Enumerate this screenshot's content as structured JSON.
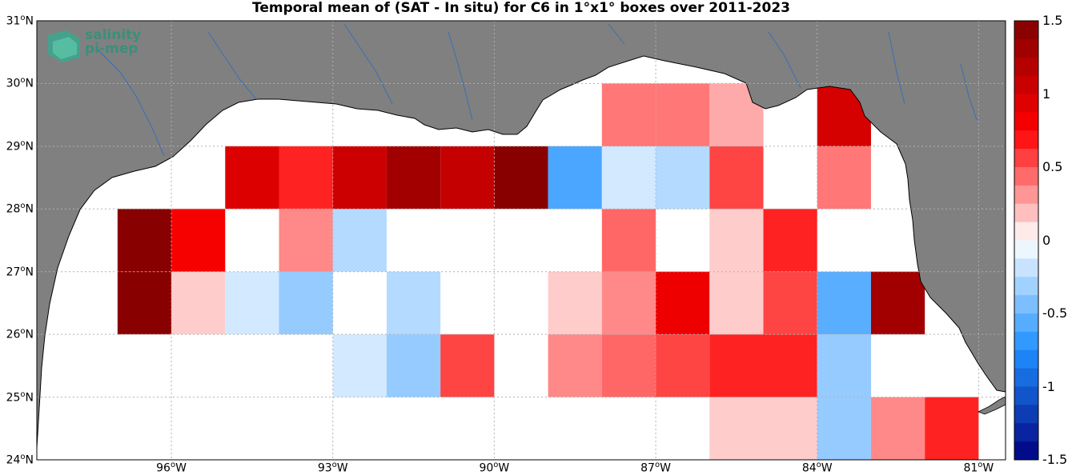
{
  "title": "Temporal mean of (SAT - In situ) for C6 in 1°x1° boxes over 2011-2023",
  "logo": {
    "line1": "salinity",
    "line2": "pi-mep"
  },
  "colors": {
    "land": "#808080",
    "ocean": "#ffffff",
    "coast": "#000000",
    "rivers": "#3a6fb0",
    "grid": "#b0b0b0"
  },
  "map_data": {
    "lon_range": [
      -98.5,
      -80.5
    ],
    "lat_range": [
      24,
      31
    ],
    "lon_ticks": [
      {
        "deg": -96,
        "label": "96",
        "unit": "W"
      },
      {
        "deg": -93,
        "label": "93",
        "unit": "W"
      },
      {
        "deg": -90,
        "label": "90",
        "unit": "W"
      },
      {
        "deg": -87,
        "label": "87",
        "unit": "W"
      },
      {
        "deg": -84,
        "label": "84",
        "unit": "W"
      },
      {
        "deg": -81,
        "label": "81",
        "unit": "W"
      }
    ],
    "lat_ticks": [
      {
        "deg": 24,
        "label": "24",
        "unit": "N"
      },
      {
        "deg": 25,
        "label": "25",
        "unit": "N"
      },
      {
        "deg": 26,
        "label": "26",
        "unit": "N"
      },
      {
        "deg": 27,
        "label": "27",
        "unit": "N"
      },
      {
        "deg": 28,
        "label": "28",
        "unit": "N"
      },
      {
        "deg": 29,
        "label": "29",
        "unit": "N"
      },
      {
        "deg": 30,
        "label": "30",
        "unit": "N"
      },
      {
        "deg": 31,
        "label": "31",
        "unit": "N"
      }
    ],
    "box_size_deg": 1,
    "cells": [
      {
        "lon": -96.5,
        "lat": 26.5,
        "v": 1.45
      },
      {
        "lon": -96.5,
        "lat": 27.5,
        "v": 1.45
      },
      {
        "lon": -95.5,
        "lat": 26.5,
        "v": 0.15
      },
      {
        "lon": -95.5,
        "lat": 27.5,
        "v": 0.8
      },
      {
        "lon": -94.5,
        "lat": 26.5,
        "v": -0.15
      },
      {
        "lon": -94.5,
        "lat": 28.5,
        "v": 0.95
      },
      {
        "lon": -93.5,
        "lat": 26.5,
        "v": -0.35
      },
      {
        "lon": -93.5,
        "lat": 27.5,
        "v": 0.35
      },
      {
        "lon": -93.5,
        "lat": 28.5,
        "v": 0.65
      },
      {
        "lon": -92.5,
        "lat": 25.5,
        "v": -0.15
      },
      {
        "lon": -92.5,
        "lat": 27.5,
        "v": -0.25
      },
      {
        "lon": -92.5,
        "lat": 28.5,
        "v": 1.05
      },
      {
        "lon": -91.5,
        "lat": 25.5,
        "v": -0.35
      },
      {
        "lon": -91.5,
        "lat": 26.5,
        "v": -0.25
      },
      {
        "lon": -91.5,
        "lat": 28.5,
        "v": 1.3
      },
      {
        "lon": -90.5,
        "lat": 25.5,
        "v": 0.55
      },
      {
        "lon": -90.5,
        "lat": 28.5,
        "v": 1.1
      },
      {
        "lon": -89.5,
        "lat": 28.5,
        "v": 1.45
      },
      {
        "lon": -88.5,
        "lat": 25.5,
        "v": 0.35
      },
      {
        "lon": -88.5,
        "lat": 26.5,
        "v": 0.15
      },
      {
        "lon": -88.5,
        "lat": 28.5,
        "v": -0.6
      },
      {
        "lon": -87.5,
        "lat": 25.5,
        "v": 0.45
      },
      {
        "lon": -87.5,
        "lat": 26.5,
        "v": 0.35
      },
      {
        "lon": -87.5,
        "lat": 27.5,
        "v": 0.45
      },
      {
        "lon": -87.5,
        "lat": 28.5,
        "v": -0.15
      },
      {
        "lon": -87.5,
        "lat": 29.5,
        "v": 0.4
      },
      {
        "lon": -86.5,
        "lat": 25.5,
        "v": 0.55
      },
      {
        "lon": -86.5,
        "lat": 26.5,
        "v": 0.85
      },
      {
        "lon": -86.5,
        "lat": 28.5,
        "v": -0.25
      },
      {
        "lon": -86.5,
        "lat": 29.5,
        "v": 0.4
      },
      {
        "lon": -85.5,
        "lat": 24.5,
        "v": 0.15
      },
      {
        "lon": -85.5,
        "lat": 25.5,
        "v": 0.65
      },
      {
        "lon": -85.5,
        "lat": 26.5,
        "v": 0.15
      },
      {
        "lon": -85.5,
        "lat": 27.5,
        "v": 0.15
      },
      {
        "lon": -85.5,
        "lat": 28.5,
        "v": 0.55
      },
      {
        "lon": -85.5,
        "lat": 29.5,
        "v": 0.25
      },
      {
        "lon": -84.5,
        "lat": 24.5,
        "v": 0.15
      },
      {
        "lon": -84.5,
        "lat": 25.5,
        "v": 0.65
      },
      {
        "lon": -84.5,
        "lat": 26.5,
        "v": 0.55
      },
      {
        "lon": -84.5,
        "lat": 27.5,
        "v": 0.65
      },
      {
        "lon": -83.5,
        "lat": 24.5,
        "v": -0.35
      },
      {
        "lon": -83.5,
        "lat": 25.5,
        "v": -0.35
      },
      {
        "lon": -83.5,
        "lat": 26.5,
        "v": -0.55
      },
      {
        "lon": -83.5,
        "lat": 28.5,
        "v": 0.4
      },
      {
        "lon": -83.5,
        "lat": 29.5,
        "v": 1.0
      },
      {
        "lon": -82.5,
        "lat": 24.5,
        "v": 0.35
      },
      {
        "lon": -82.5,
        "lat": 26.5,
        "v": 1.3
      },
      {
        "lon": -81.5,
        "lat": 24.5,
        "v": 0.65
      }
    ]
  },
  "colorbar": {
    "min": -1.5,
    "max": 1.5,
    "levels": 24,
    "tick_labels": [
      "1.5",
      "1",
      "0.5",
      "0",
      "-0.5",
      "-1",
      "-1.5"
    ]
  }
}
